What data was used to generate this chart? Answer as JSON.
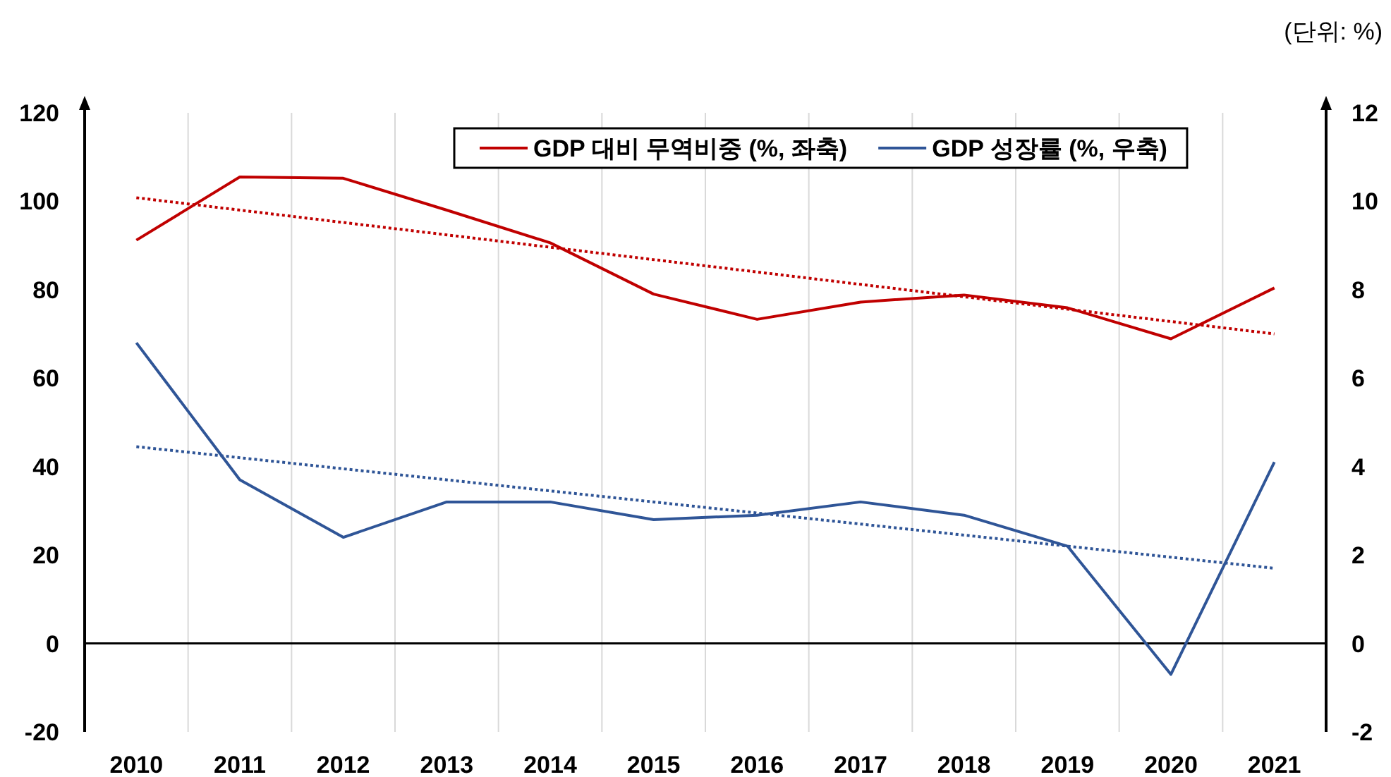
{
  "chart_data": {
    "type": "line",
    "categories": [
      "2010",
      "2011",
      "2012",
      "2013",
      "2014",
      "2015",
      "2016",
      "2017",
      "2018",
      "2019",
      "2020",
      "2021"
    ],
    "series": [
      {
        "name": "GDP 대비 무역비중 (%, 좌축)",
        "color": "#c00000",
        "values": [
          91.2,
          105.5,
          105.2,
          98,
          90.6,
          79,
          73.3,
          77.2,
          78.8,
          75.9,
          68.9,
          80.4
        ]
      },
      {
        "name": "GDP 성장률 (%, 우축)",
        "color": "#2f5597",
        "axis": "y2",
        "values": [
          6.8,
          3.7,
          2.4,
          3.2,
          3.2,
          2.8,
          2.9,
          3.2,
          2.9,
          2.2,
          -0.7,
          4.1
        ]
      },
      {
        "color": "#c00000",
        "line_style": "dotted",
        "values": [
          100.8,
          null,
          null,
          null,
          null,
          null,
          null,
          null,
          null,
          null,
          null,
          70
        ]
      },
      {
        "color": "#2f5597",
        "axis": "y2",
        "line_style": "dotted",
        "values": [
          4.45,
          null,
          null,
          null,
          null,
          null,
          null,
          null,
          null,
          null,
          null,
          1.7
        ]
      }
    ],
    "ylim": [
      -20,
      120
    ],
    "yticks": [
      -20,
      0,
      20,
      40,
      60,
      80,
      100,
      120
    ],
    "y2lim": [
      -2,
      12
    ],
    "y2ticks": [
      -2,
      0,
      2,
      4,
      6,
      8,
      10,
      12
    ],
    "grid": "x",
    "legend": "top right",
    "marker": "none",
    "annotations": [
      "(단위:  %)"
    ]
  }
}
